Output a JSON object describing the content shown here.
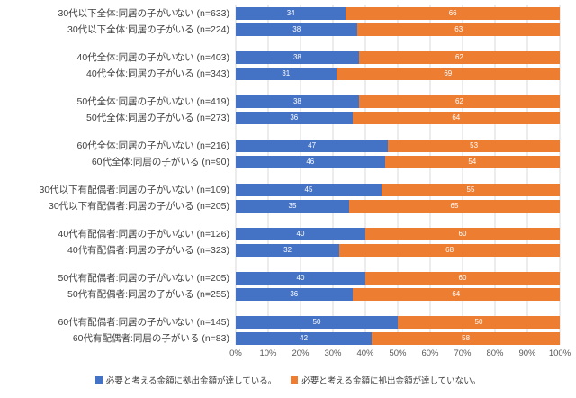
{
  "chart_data": {
    "type": "bar",
    "subtype": "horizontal-stacked-100pct",
    "title": "",
    "xlabel": "",
    "ylabel": "",
    "xlim": [
      0,
      100
    ],
    "grid": true,
    "legend_position": "bottom",
    "group_size": 2,
    "categories": [
      "30代以下全体:同居の子がいない (n=633)",
      "30代以下全体:同居の子がいる (n=224)",
      "40代全体:同居の子がいない (n=403)",
      "40代全体:同居の子がいる (n=343)",
      "50代全体:同居の子がいない (n=419)",
      "50代全体:同居の子がいる (n=273)",
      "60代全体:同居の子がいない (n=216)",
      "60代全体:同居の子がいる (n=90)",
      "30代以下有配偶者:同居の子がいない (n=109)",
      "30代以下有配偶者:同居の子がいる (n=205)",
      "40代有配偶者:同居の子がいない (n=126)",
      "40代有配偶者:同居の子がいる (n=323)",
      "50代有配偶者:同居の子がいない (n=205)",
      "50代有配偶者:同居の子がいる (n=255)",
      "60代有配偶者:同居の子がいない (n=145)",
      "60代有配偶者:同居の子がいる (n=83)"
    ],
    "series": [
      {
        "name": "必要と考える金額に拠出金額が達している。",
        "color": "#4472C4",
        "values": [
          34,
          38,
          38,
          31,
          38,
          36,
          47,
          46,
          45,
          35,
          40,
          32,
          40,
          36,
          50,
          42
        ]
      },
      {
        "name": "必要と考える金額に拠出金額が達していない。",
        "color": "#ED7D31",
        "values": [
          66,
          63,
          62,
          69,
          62,
          64,
          53,
          54,
          55,
          65,
          60,
          68,
          60,
          64,
          50,
          58
        ]
      }
    ],
    "x_ticks": [
      "0%",
      "10%",
      "20%",
      "30%",
      "40%",
      "50%",
      "60%",
      "70%",
      "80%",
      "90%",
      "100%"
    ]
  },
  "colors": {
    "grid": "#D9D9D9",
    "axis_text": "#595959",
    "label_text": "#404040",
    "value_text": "#FFFFFF",
    "background": "#FFFFFF"
  }
}
